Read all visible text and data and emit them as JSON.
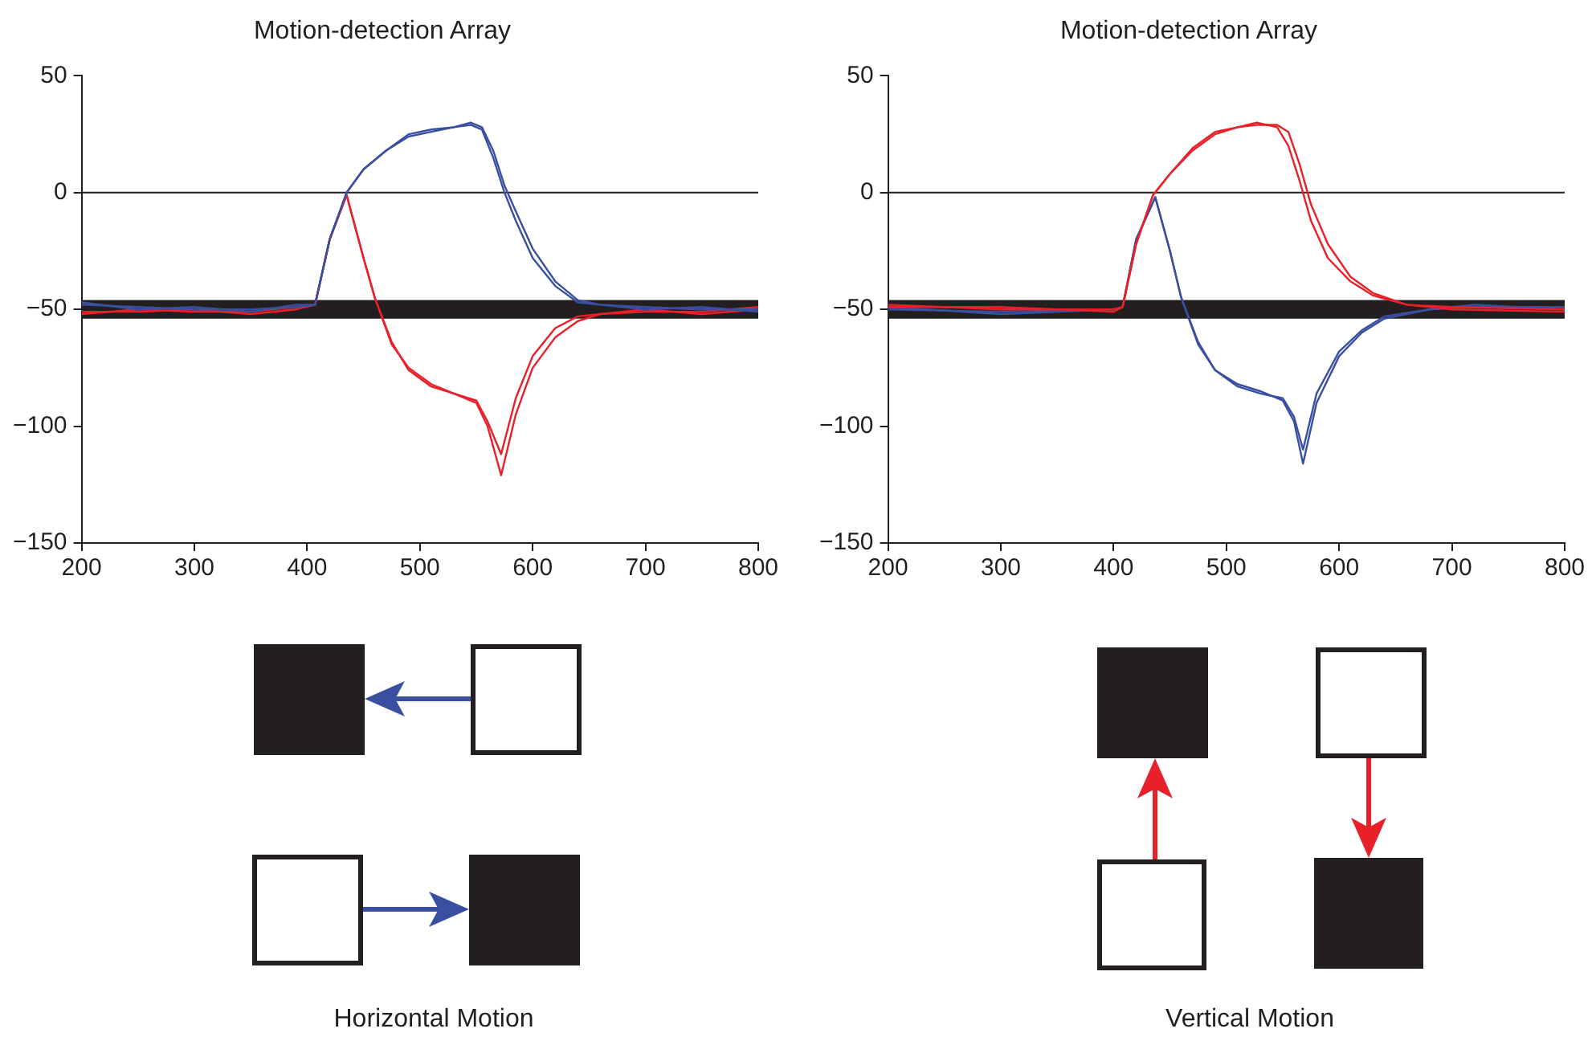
{
  "chart_data": [
    {
      "type": "line",
      "title": "Motion-detection Array",
      "xlim": [
        200,
        800
      ],
      "xticks": [
        200,
        300,
        400,
        500,
        600,
        700,
        800
      ],
      "ylim": [
        -150,
        50
      ],
      "yticks": [
        -150,
        -100,
        -50,
        0,
        50
      ],
      "grid": false,
      "legend": false,
      "marker": "none",
      "ref_lines": [
        {
          "axis": "y",
          "value": 0,
          "color": "#231f20"
        }
      ],
      "bands": [
        {
          "axis": "y",
          "from": -54,
          "to": -46,
          "color": "#231f20"
        }
      ],
      "annotations": [
        "Horizontal Motion"
      ],
      "series": [
        {
          "color": "#3a4fa0",
          "x": [
            200,
            250,
            300,
            350,
            390,
            407,
            420,
            435,
            450,
            470,
            490,
            510,
            530,
            545,
            555,
            565,
            575,
            585,
            600,
            620,
            640,
            660,
            700,
            750,
            800
          ],
          "values": [
            -48,
            -49,
            -50,
            -50,
            -49,
            -48,
            -20,
            0,
            10,
            18,
            24,
            26,
            28,
            29,
            27,
            15,
            0,
            -12,
            -28,
            -40,
            -47,
            -48,
            -49,
            -50,
            -50
          ]
        },
        {
          "color": "#3a4fa0",
          "x": [
            200,
            250,
            300,
            350,
            390,
            407,
            420,
            435,
            450,
            470,
            490,
            510,
            530,
            545,
            555,
            565,
            575,
            585,
            600,
            620,
            640,
            660,
            700,
            750,
            800
          ],
          "values": [
            -47,
            -50,
            -49,
            -51,
            -48,
            -48,
            -20,
            0,
            10,
            18,
            25,
            27,
            28,
            30,
            28,
            18,
            3,
            -8,
            -24,
            -38,
            -46,
            -48,
            -50,
            -49,
            -51
          ]
        },
        {
          "color": "#e8202a",
          "x": [
            200,
            250,
            300,
            350,
            390,
            407,
            420,
            435,
            450,
            460,
            475,
            490,
            510,
            530,
            550,
            560,
            572,
            585,
            600,
            620,
            640,
            660,
            700,
            750,
            800
          ],
          "values": [
            -52,
            -50,
            -51,
            -51,
            -49,
            -48,
            -20,
            -1,
            -28,
            -45,
            -65,
            -75,
            -82,
            -86,
            -90,
            -100,
            -121,
            -95,
            -75,
            -62,
            -55,
            -52,
            -51,
            -51,
            -49
          ]
        },
        {
          "color": "#e8202a",
          "x": [
            200,
            250,
            300,
            350,
            390,
            407,
            420,
            435,
            450,
            460,
            475,
            490,
            510,
            530,
            550,
            560,
            572,
            585,
            600,
            620,
            640,
            660,
            700,
            750,
            800
          ],
          "values": [
            -51,
            -51,
            -50,
            -52,
            -50,
            -48,
            -20,
            -1,
            -28,
            -45,
            -64,
            -76,
            -83,
            -86,
            -89,
            -98,
            -112,
            -88,
            -70,
            -58,
            -53,
            -52,
            -50,
            -52,
            -50
          ]
        }
      ]
    },
    {
      "type": "line",
      "title": "Motion-detection Array",
      "xlim": [
        200,
        800
      ],
      "xticks": [
        200,
        300,
        400,
        500,
        600,
        700,
        800
      ],
      "ylim": [
        -150,
        50
      ],
      "yticks": [
        -150,
        -100,
        -50,
        0,
        50
      ],
      "grid": false,
      "legend": false,
      "marker": "none",
      "ref_lines": [
        {
          "axis": "y",
          "value": 0,
          "color": "#231f20"
        }
      ],
      "bands": [
        {
          "axis": "y",
          "from": -54,
          "to": -46,
          "color": "#231f20"
        }
      ],
      "annotations": [
        "Vertical Motion"
      ],
      "series": [
        {
          "color": "#e8202a",
          "x": [
            200,
            300,
            400,
            408,
            420,
            435,
            450,
            470,
            490,
            510,
            527,
            545,
            555,
            565,
            575,
            590,
            610,
            630,
            660,
            700,
            800
          ],
          "values": [
            -48,
            -50,
            -50,
            -49,
            -22,
            -1,
            8,
            18,
            25,
            28,
            30,
            28,
            20,
            5,
            -12,
            -28,
            -38,
            -44,
            -48,
            -49,
            -50
          ]
        },
        {
          "color": "#e8202a",
          "x": [
            200,
            300,
            400,
            408,
            420,
            435,
            450,
            470,
            490,
            510,
            527,
            545,
            555,
            565,
            575,
            590,
            610,
            630,
            660,
            700,
            800
          ],
          "values": [
            -49,
            -49,
            -51,
            -49,
            -22,
            -1,
            8,
            19,
            26,
            28,
            29,
            29,
            26,
            12,
            -5,
            -22,
            -36,
            -43,
            -48,
            -50,
            -51
          ]
        },
        {
          "color": "#3a4fa0",
          "x": [
            200,
            300,
            400,
            408,
            420,
            437,
            450,
            460,
            475,
            490,
            510,
            530,
            550,
            560,
            568,
            580,
            600,
            620,
            640,
            680,
            720,
            800
          ],
          "values": [
            -50,
            -51,
            -50,
            -49,
            -20,
            -2,
            -25,
            -45,
            -65,
            -76,
            -82,
            -85,
            -89,
            -98,
            -116,
            -90,
            -70,
            -60,
            -54,
            -50,
            -49,
            -49
          ]
        },
        {
          "color": "#3a4fa0",
          "x": [
            200,
            300,
            400,
            408,
            420,
            437,
            450,
            460,
            475,
            490,
            510,
            530,
            550,
            560,
            568,
            580,
            600,
            620,
            640,
            680,
            720,
            800
          ],
          "values": [
            -49,
            -52,
            -50,
            -49,
            -20,
            -2,
            -25,
            -45,
            -64,
            -76,
            -83,
            -86,
            -88,
            -96,
            -110,
            -86,
            -68,
            -59,
            -53,
            -50,
            -48,
            -50
          ]
        }
      ]
    }
  ]
}
